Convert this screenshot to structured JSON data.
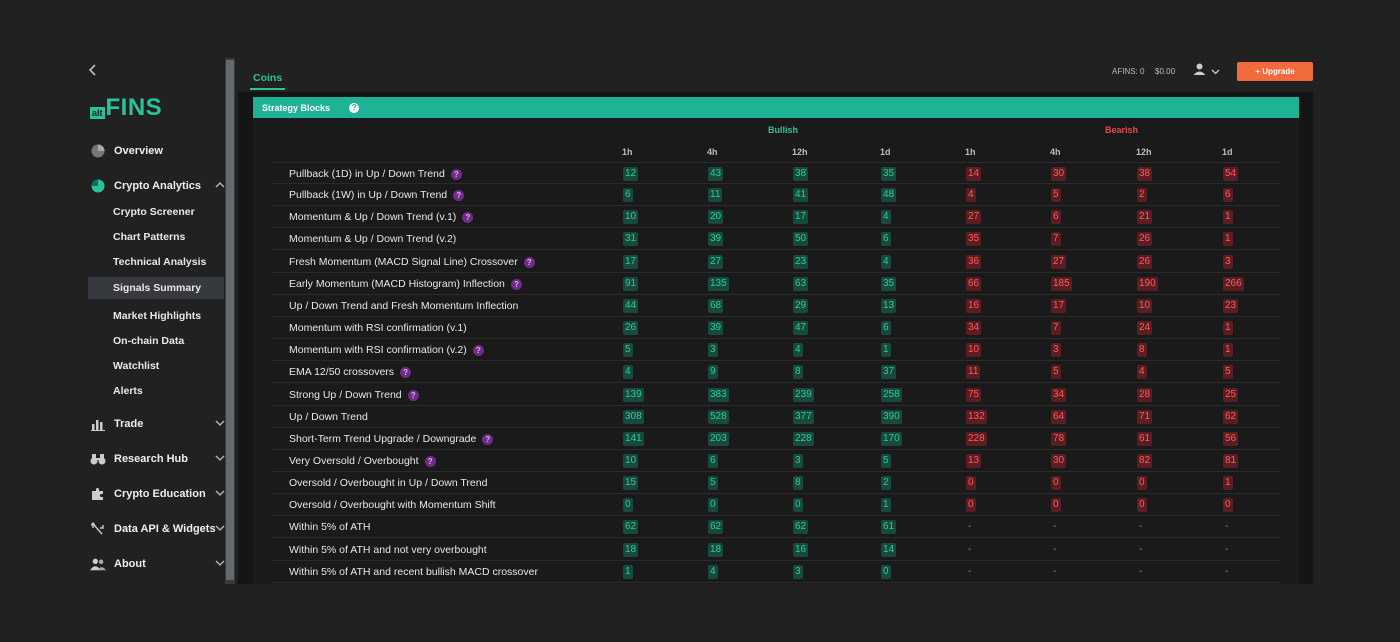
{
  "sidebar": {
    "logo_box": "alt",
    "logo_text": "FINS",
    "nav": [
      {
        "label": "Overview",
        "icon": "overview-icon"
      },
      {
        "label": "Crypto Analytics",
        "icon": "analytics-icon"
      },
      {
        "label": "Trade",
        "icon": "trade-chart-icon"
      },
      {
        "label": "Research Hub",
        "icon": "binoculars-icon"
      },
      {
        "label": "Crypto Education",
        "icon": "puzzle-icon"
      },
      {
        "label": "Data API & Widgets",
        "icon": "api-icon"
      },
      {
        "label": "About",
        "icon": "people-icon"
      }
    ],
    "sub_items": [
      "Crypto Screener",
      "Chart Patterns",
      "Technical Analysis",
      "Signals Summary",
      "Market Highlights",
      "On-chain Data",
      "Watchlist",
      "Alerts"
    ],
    "active_sub_item": "Signals Summary"
  },
  "header": {
    "tab": "Coins",
    "afins": "AFINS: 0",
    "balance": "$0.00",
    "upgrade_label": "+ Upgrade"
  },
  "panel": {
    "title": "Strategy Blocks",
    "group_bullish": "Bullish",
    "group_bearish": "Bearish",
    "timeframes": [
      "1h",
      "4h",
      "12h",
      "1d"
    ]
  },
  "rows": [
    {
      "label": "Pullback (1D) in Up / Down Trend",
      "help": true,
      "bull": [
        "12",
        "43",
        "38",
        "35"
      ],
      "bear": [
        "14",
        "30",
        "38",
        "54"
      ]
    },
    {
      "label": "Pullback (1W) in Up / Down Trend",
      "help": true,
      "bull": [
        "6",
        "11",
        "41",
        "48"
      ],
      "bear": [
        "4",
        "5",
        "2",
        "6"
      ]
    },
    {
      "label": "Momentum & Up / Down Trend (v.1)",
      "help": true,
      "bull": [
        "10",
        "20",
        "17",
        "4"
      ],
      "bear": [
        "27",
        "6",
        "21",
        "1"
      ]
    },
    {
      "label": "Momentum & Up / Down Trend (v.2)",
      "help": false,
      "bull": [
        "31",
        "39",
        "50",
        "6"
      ],
      "bear": [
        "35",
        "7",
        "26",
        "1"
      ]
    },
    {
      "label": "Fresh Momentum (MACD Signal Line) Crossover",
      "help": true,
      "bull": [
        "17",
        "27",
        "23",
        "4"
      ],
      "bear": [
        "36",
        "27",
        "26",
        "3"
      ]
    },
    {
      "label": "Early Momentum (MACD Histogram) Inflection",
      "help": true,
      "bull": [
        "91",
        "135",
        "63",
        "35"
      ],
      "bear": [
        "66",
        "185",
        "190",
        "266"
      ]
    },
    {
      "label": "Up / Down Trend and Fresh Momentum Inflection",
      "help": false,
      "bull": [
        "44",
        "68",
        "29",
        "13"
      ],
      "bear": [
        "16",
        "17",
        "10",
        "23"
      ]
    },
    {
      "label": "Momentum with RSI confirmation (v.1)",
      "help": false,
      "bull": [
        "26",
        "39",
        "47",
        "6"
      ],
      "bear": [
        "34",
        "7",
        "24",
        "1"
      ]
    },
    {
      "label": "Momentum with RSI confirmation (v.2)",
      "help": true,
      "bull": [
        "5",
        "3",
        "4",
        "1"
      ],
      "bear": [
        "10",
        "3",
        "8",
        "1"
      ]
    },
    {
      "label": "EMA 12/50 crossovers",
      "help": true,
      "bull": [
        "4",
        "9",
        "8",
        "37"
      ],
      "bear": [
        "11",
        "5",
        "4",
        "5"
      ]
    },
    {
      "label": "Strong Up / Down Trend",
      "help": true,
      "bull": [
        "139",
        "383",
        "239",
        "258"
      ],
      "bear": [
        "75",
        "34",
        "28",
        "25"
      ]
    },
    {
      "label": "Up / Down Trend",
      "help": false,
      "bull": [
        "308",
        "528",
        "377",
        "390"
      ],
      "bear": [
        "132",
        "64",
        "71",
        "62"
      ]
    },
    {
      "label": "Short-Term Trend Upgrade / Downgrade",
      "help": true,
      "bull": [
        "141",
        "203",
        "228",
        "170"
      ],
      "bear": [
        "228",
        "78",
        "61",
        "56"
      ]
    },
    {
      "label": "Very Oversold / Overbought",
      "help": true,
      "bull": [
        "10",
        "6",
        "3",
        "5"
      ],
      "bear": [
        "13",
        "30",
        "82",
        "81"
      ]
    },
    {
      "label": "Oversold / Overbought in Up / Down Trend",
      "help": false,
      "bull": [
        "15",
        "5",
        "8",
        "2"
      ],
      "bear": [
        "0",
        "0",
        "0",
        "1"
      ]
    },
    {
      "label": "Oversold / Overbought with Momentum Shift",
      "help": false,
      "bull": [
        "0",
        "0",
        "0",
        "1"
      ],
      "bear": [
        "0",
        "0",
        "0",
        "0"
      ]
    },
    {
      "label": "Within 5% of ATH",
      "help": false,
      "bull": [
        "62",
        "62",
        "62",
        "61"
      ],
      "bear": [
        "-",
        "-",
        "-",
        "-"
      ]
    },
    {
      "label": "Within 5% of ATH and not very overbought",
      "help": false,
      "bull": [
        "18",
        "18",
        "16",
        "14"
      ],
      "bear": [
        "-",
        "-",
        "-",
        "-"
      ]
    },
    {
      "label": "Within 5% of ATH and recent bullish MACD crossover",
      "help": false,
      "bull": [
        "1",
        "4",
        "3",
        "0"
      ],
      "bear": [
        "-",
        "-",
        "-",
        "-"
      ]
    }
  ],
  "colors": {
    "accent": "#2bc29b",
    "bearish": "#e24a4a",
    "upgrade": "#f06a3c",
    "header_bar": "#1eb394"
  }
}
